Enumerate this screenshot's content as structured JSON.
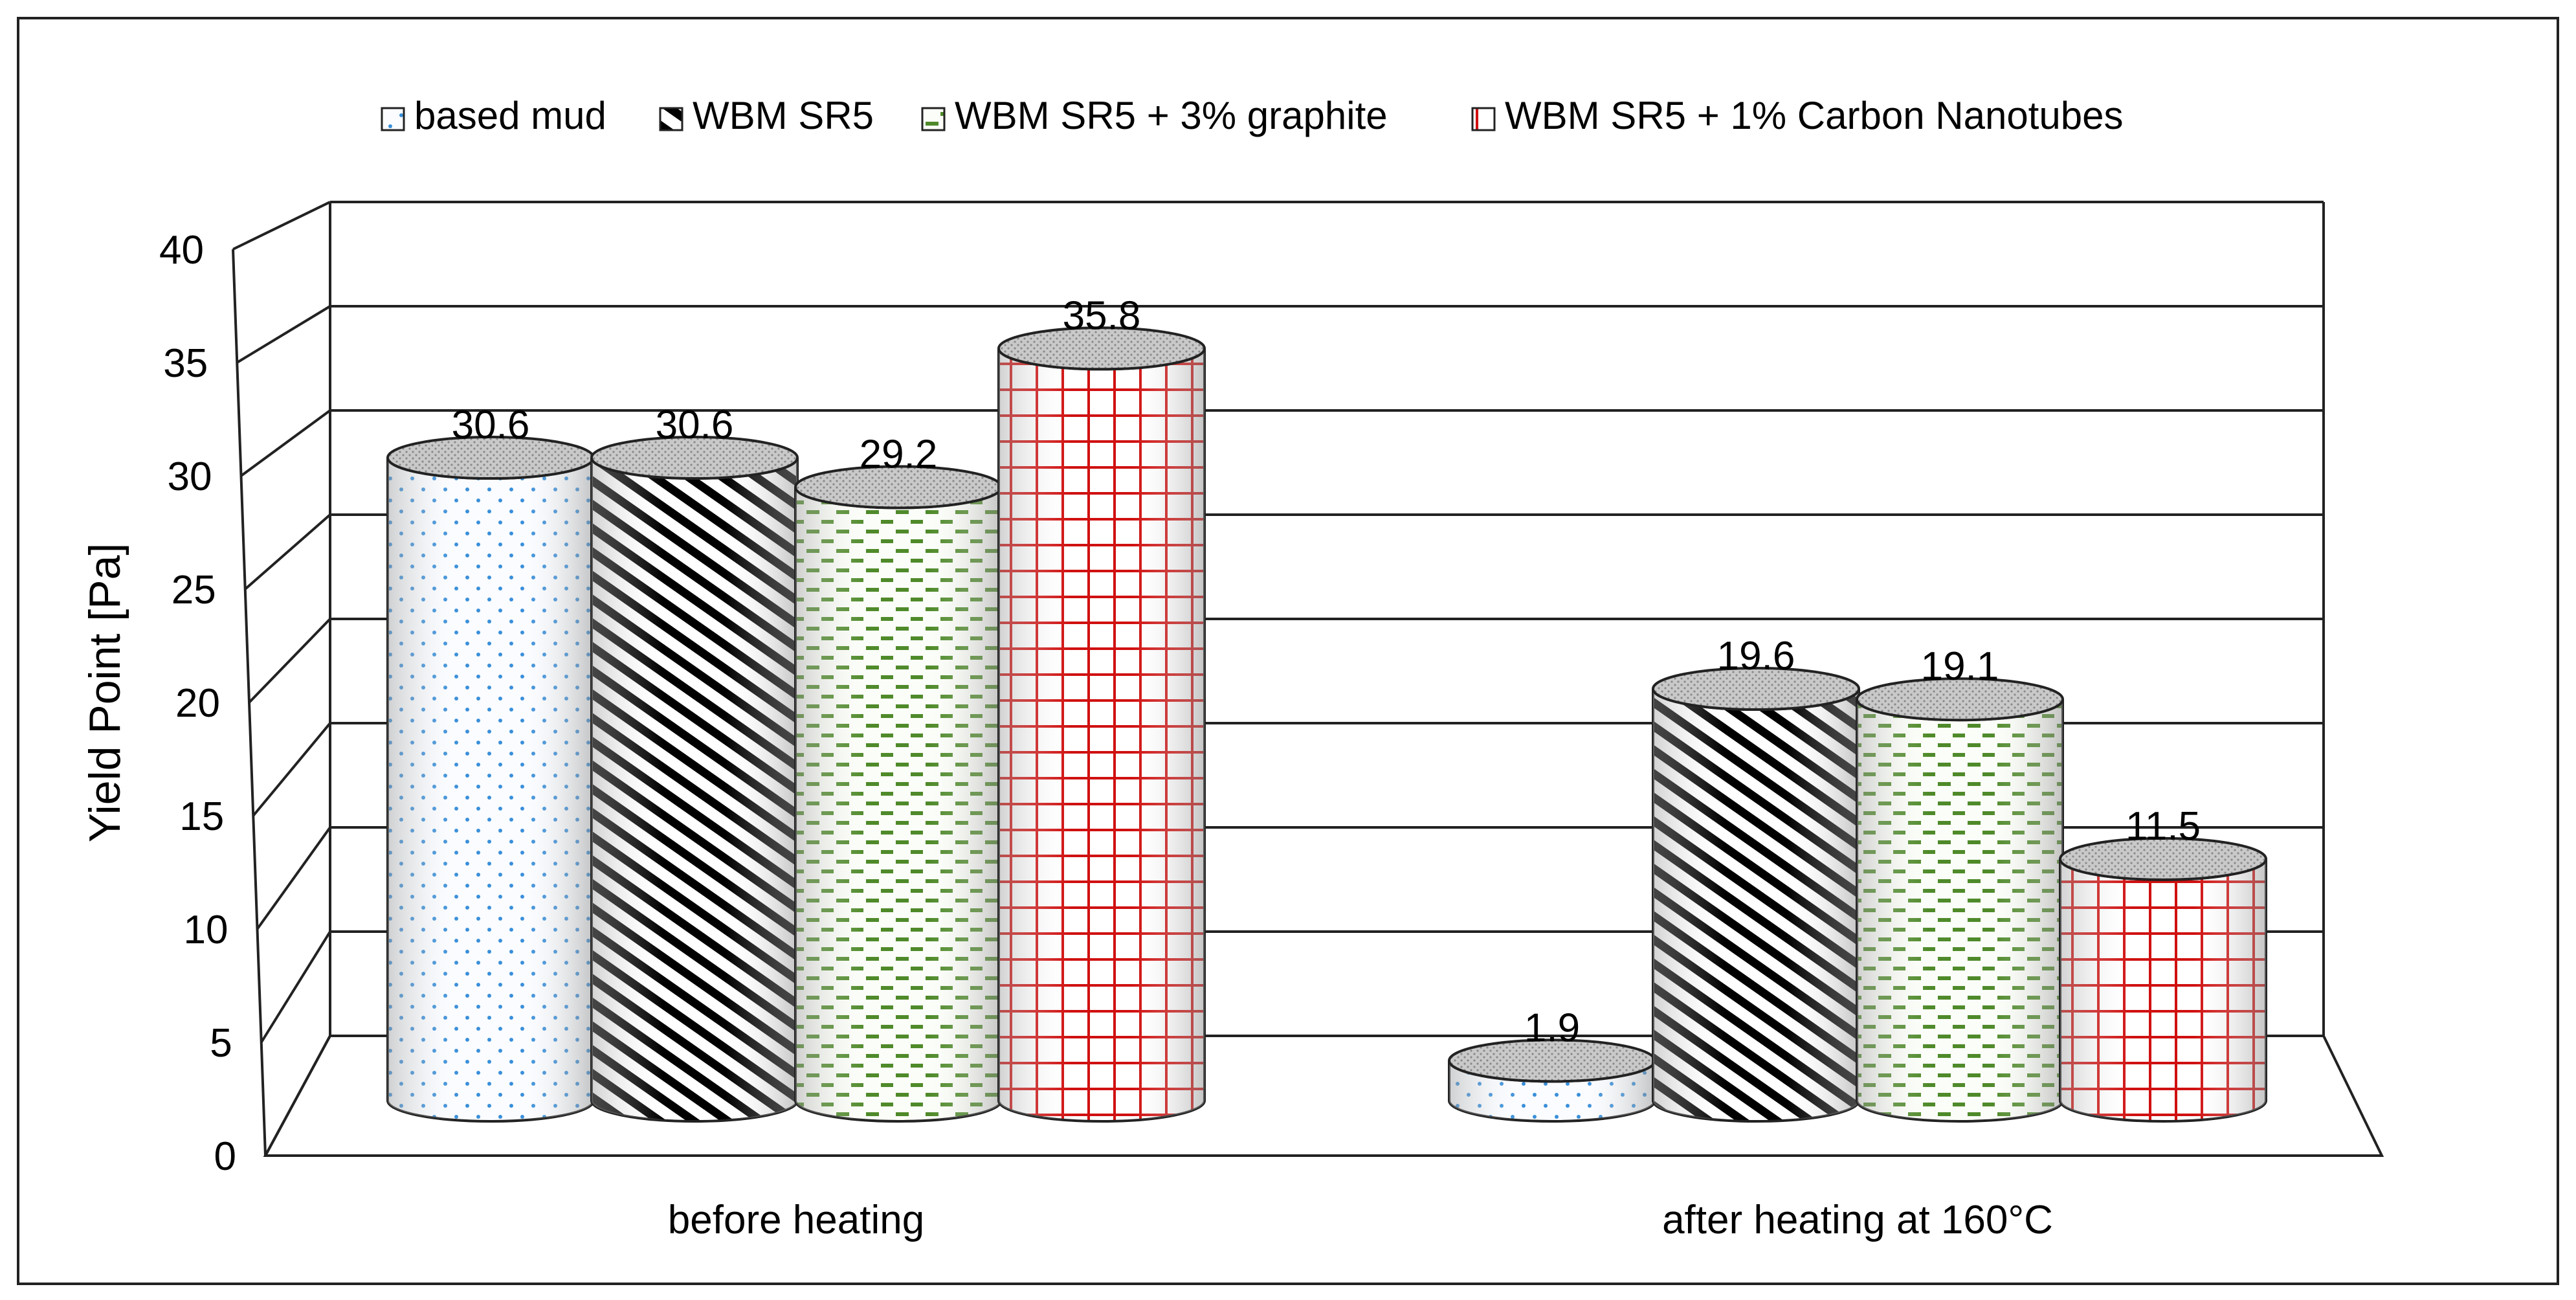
{
  "chart_data": {
    "type": "bar",
    "style": "3d-cylinder",
    "categories": [
      "before heating",
      "after heating  at 160°C"
    ],
    "series": [
      {
        "name": "based mud",
        "values": [
          30.6,
          1.9
        ],
        "color": "#3a8fd9",
        "pattern": "dots"
      },
      {
        "name": "WBM SR5",
        "values": [
          30.6,
          19.6
        ],
        "color": "#000000",
        "pattern": "diagonal-stripes"
      },
      {
        "name": "WBM SR5 + 3% graphite",
        "values": [
          29.2,
          19.1
        ],
        "color": "#4f8a2a",
        "pattern": "dashes"
      },
      {
        "name": "WBM SR5 + 1% Carbon Nanotubes",
        "values": [
          35.8,
          11.5
        ],
        "color": "#d01010",
        "pattern": "grid"
      }
    ],
    "data_labels": [
      [
        "30.6",
        "1.9"
      ],
      [
        "30.6",
        "19.6"
      ],
      [
        "29.2",
        "19.1"
      ],
      [
        "35.8",
        "11.5"
      ]
    ],
    "title": "",
    "xlabel": "",
    "ylabel": "Yield Point [Pa]",
    "ylim": [
      0,
      40
    ],
    "yticks": [
      "0",
      "5",
      "10",
      "15",
      "20",
      "25",
      "30",
      "35",
      "40"
    ],
    "grid": true,
    "legend_position": "top"
  }
}
